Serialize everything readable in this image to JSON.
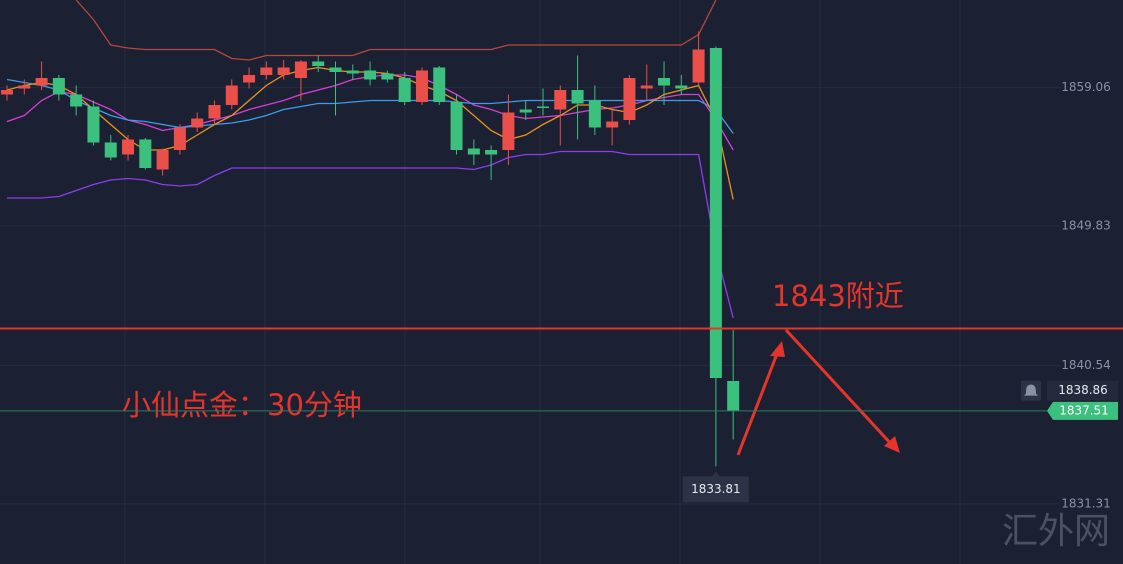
{
  "chart_data": {
    "type": "candlestick",
    "up_color": "#ea4f49",
    "down_color": "#3cc07e",
    "ylim": [
      1827.3,
      1864.9
    ],
    "yticks": [
      1831.31,
      1840.54,
      1849.83,
      1859.06
    ],
    "grid": true,
    "open": [
      1858.6,
      1859.0,
      1859.2,
      1859.7,
      1858.6,
      1857.8,
      1855.4,
      1854.6,
      1855.6,
      1853.6,
      1854.9,
      1856.4,
      1857.0,
      1857.9,
      1859.4,
      1859.9,
      1859.9,
      1859.7,
      1860.8,
      1860.4,
      1860.2,
      1860.2,
      1860.0,
      1859.7,
      1858.1,
      1860.4,
      1858.1,
      1855.0,
      1854.9,
      1854.9,
      1857.6,
      1857.8,
      1857.6,
      1858.9,
      1858.2,
      1856.4,
      1856.9,
      1859.0,
      1859.7,
      1859.2,
      1859.4,
      1861.7,
      1839.5
    ],
    "high": [
      1859.2,
      1859.6,
      1860.8,
      1859.9,
      1859.2,
      1858.2,
      1855.9,
      1855.9,
      1855.7,
      1855.0,
      1856.6,
      1857.4,
      1858.2,
      1859.6,
      1860.4,
      1860.8,
      1860.9,
      1860.9,
      1861.2,
      1860.8,
      1860.6,
      1860.8,
      1860.2,
      1860.1,
      1860.4,
      1860.5,
      1858.6,
      1855.6,
      1855.2,
      1858.6,
      1858.2,
      1859.0,
      1859.2,
      1861.2,
      1859.2,
      1857.6,
      1859.9,
      1860.6,
      1860.8,
      1859.9,
      1862.8,
      1861.8,
      1842.9
    ],
    "low": [
      1858.2,
      1858.6,
      1858.9,
      1858.2,
      1857.2,
      1855.2,
      1854.2,
      1854.2,
      1853.6,
      1853.2,
      1854.6,
      1856.1,
      1856.6,
      1857.6,
      1859.0,
      1859.6,
      1859.6,
      1858.2,
      1860.1,
      1857.2,
      1859.6,
      1859.2,
      1859.4,
      1857.9,
      1857.9,
      1857.9,
      1854.6,
      1853.9,
      1852.9,
      1853.9,
      1856.9,
      1857.2,
      1855.2,
      1855.6,
      1855.9,
      1855.2,
      1856.6,
      1858.2,
      1857.9,
      1858.6,
      1859.2,
      1833.81,
      1835.6
    ],
    "close": [
      1858.9,
      1859.2,
      1859.7,
      1858.6,
      1857.8,
      1855.4,
      1854.4,
      1855.6,
      1853.7,
      1854.9,
      1856.4,
      1857.0,
      1857.9,
      1859.2,
      1859.9,
      1860.4,
      1860.4,
      1860.8,
      1860.5,
      1860.1,
      1860.0,
      1859.6,
      1859.6,
      1858.1,
      1860.2,
      1858.1,
      1854.9,
      1854.6,
      1854.6,
      1857.4,
      1857.4,
      1857.7,
      1858.9,
      1858.0,
      1856.4,
      1856.8,
      1859.7,
      1859.2,
      1859.2,
      1859.0,
      1861.6,
      1839.7,
      1837.51
    ],
    "series": [
      {
        "color": "#b8473c",
        "values": [
          null,
          null,
          null,
          null,
          1864.9,
          1863.6,
          1861.9,
          1861.7,
          1861.6,
          1861.6,
          1861.6,
          1861.6,
          1861.6,
          1861.0,
          1860.9,
          1861.2,
          1861.2,
          1861.2,
          1861.2,
          1861.2,
          1861.2,
          1861.6,
          1861.6,
          1861.6,
          1861.6,
          1861.6,
          1861.6,
          1861.6,
          1861.6,
          1861.9,
          1861.9,
          1861.9,
          1861.9,
          1861.9,
          1861.9,
          1861.9,
          1861.9,
          1861.9,
          1861.9,
          1861.9,
          1862.6,
          1864.9,
          null
        ]
      },
      {
        "color": "#8e3cf0",
        "values": [
          1851.7,
          1851.7,
          1851.7,
          1851.8,
          1852.2,
          1852.6,
          1852.9,
          1853.0,
          1852.9,
          1852.6,
          1852.5,
          1852.6,
          1853.2,
          1853.7,
          1853.7,
          1853.7,
          1853.7,
          1853.7,
          1853.7,
          1853.7,
          1853.7,
          1853.7,
          1853.7,
          1853.7,
          1853.7,
          1853.7,
          1853.7,
          1853.6,
          1853.9,
          1854.4,
          1854.6,
          1854.6,
          1854.8,
          1854.8,
          1854.8,
          1854.8,
          1854.6,
          1854.6,
          1854.6,
          1854.6,
          1854.6,
          1848.2,
          1843.7
        ]
      },
      {
        "color": "#d63fd6",
        "values": [
          1856.8,
          1857.2,
          1858.2,
          1858.8,
          1858.6,
          1858.1,
          1857.6,
          1856.9,
          1856.6,
          1856.2,
          1856.4,
          1856.6,
          1856.9,
          1857.2,
          1857.6,
          1857.9,
          1858.2,
          1858.6,
          1858.9,
          1859.2,
          1859.6,
          1859.8,
          1859.9,
          1859.9,
          1859.7,
          1859.2,
          1858.6,
          1857.9,
          1857.6,
          1857.2,
          1857.0,
          1857.1,
          1857.2,
          1857.4,
          1857.6,
          1857.7,
          1857.9,
          1858.2,
          1858.4,
          1858.6,
          1858.6,
          1856.9,
          1854.9
        ]
      },
      {
        "color": "#3d9be9",
        "values": [
          1859.6,
          1859.4,
          1859.2,
          1858.9,
          1858.2,
          1857.7,
          1857.2,
          1856.9,
          1856.8,
          1856.6,
          1856.4,
          1856.5,
          1856.6,
          1856.7,
          1856.9,
          1857.2,
          1857.6,
          1857.8,
          1858.0,
          1858.0,
          1858.1,
          1858.2,
          1858.2,
          1858.2,
          1858.2,
          1858.2,
          1858.1,
          1858.0,
          1858.0,
          1858.1,
          1858.2,
          1858.2,
          1858.2,
          1858.2,
          1858.2,
          1858.2,
          1858.2,
          1858.2,
          1858.2,
          1858.2,
          1858.2,
          1857.6,
          1856.0
        ]
      },
      {
        "color": "#e8921f",
        "values": [
          1858.9,
          1859.2,
          1859.4,
          1859.2,
          1858.6,
          1857.6,
          1856.6,
          1855.6,
          1854.9,
          1854.9,
          1855.2,
          1855.9,
          1856.6,
          1857.2,
          1858.2,
          1859.2,
          1859.9,
          1860.2,
          1860.4,
          1860.2,
          1860.1,
          1860.1,
          1860.0,
          1859.7,
          1859.2,
          1858.8,
          1858.2,
          1857.2,
          1856.2,
          1855.6,
          1855.9,
          1856.6,
          1857.2,
          1857.9,
          1857.9,
          1857.6,
          1857.4,
          1857.9,
          1858.6,
          1858.9,
          1859.2,
          1856.9,
          1851.6
        ]
      }
    ],
    "reference_line": {
      "value": 1843,
      "color": "#e5352b"
    },
    "alert_price": 1838.86,
    "annotations": [
      "1843附近",
      "小仙点金：30分钟"
    ],
    "watermark": "汇外网"
  }
}
